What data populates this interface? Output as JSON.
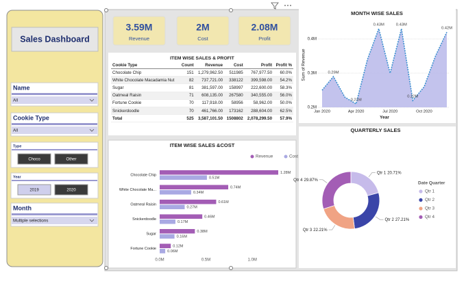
{
  "sidebar": {
    "title": "Sales Dashboard",
    "slicers": [
      {
        "title": "Name",
        "value": "All"
      },
      {
        "title": "Cookie Type",
        "value": "All"
      },
      {
        "title": "Type",
        "options": [
          "Choco",
          "Other"
        ],
        "selected": [
          true,
          true
        ]
      },
      {
        "title": "Year",
        "options": [
          "2019",
          "2020"
        ],
        "selected": [
          false,
          true
        ]
      },
      {
        "title": "Month",
        "value": "Multiple selections"
      }
    ]
  },
  "kpis": [
    {
      "value": "3.59M",
      "label": "Revenue"
    },
    {
      "value": "2M",
      "label": "Cost"
    },
    {
      "value": "2.08M",
      "label": "Profit"
    }
  ],
  "table": {
    "title": "ITEM WISE SALES & PROFIT",
    "columns": [
      "Cookie Type",
      "Count",
      "Revenue",
      "Cost",
      "Profit",
      "Profit %"
    ],
    "rows": [
      [
        "Chocolate Chip",
        151,
        "1,279,962.50",
        511985,
        "767,977.50",
        "60.0%"
      ],
      [
        "White Chocolate Macadamia Nut",
        82,
        "737,721.00",
        338122,
        "399,598.00",
        "54.2%"
      ],
      [
        "Sugar",
        81,
        "381,597.00",
        158997,
        "222,600.00",
        "58.3%"
      ],
      [
        "Oatmeal Raisin",
        71,
        "608,135.00",
        267580,
        "340,555.00",
        "56.0%"
      ],
      [
        "Fortune Cookie",
        70,
        "117,918.00",
        58956,
        "58,962.00",
        "50.0%"
      ],
      [
        "Snickerdoodle",
        70,
        "461,766.00",
        173162,
        "288,604.00",
        "62.5%"
      ]
    ],
    "total": [
      "Total",
      525,
      "3,587,101.50",
      1508802,
      "2,078,299.50",
      "57.9%"
    ]
  },
  "chart_data": [
    {
      "type": "line",
      "title": "MONTH WISE SALES",
      "x_label": "Year",
      "y_label": "Sum of Revenue",
      "x": [
        "2020-01",
        "2020-02",
        "2020-03",
        "2020-04",
        "2020-05",
        "2020-06",
        "2020-07",
        "2020-08",
        "2020-09",
        "2020-10",
        "2020-11",
        "2020-12"
      ],
      "values": [
        0.25,
        0.29,
        0.23,
        0.21,
        0.34,
        0.43,
        0.3,
        0.43,
        0.22,
        0.26,
        0.35,
        0.42
      ],
      "value_labels": [
        null,
        "0.29M",
        null,
        "0.21M",
        null,
        "0.43M",
        null,
        "0.43M",
        "0.22M",
        null,
        null,
        "0.42M"
      ],
      "color": "#3a8fd0",
      "fill": "#b9b9ea",
      "xlim": [
        "2020-01",
        "2020-12"
      ],
      "xticks": [
        {
          "value": "2020-01",
          "label": "Jan 2020"
        },
        {
          "value": "2020-04",
          "label": "Apr 2020"
        },
        {
          "value": "2020-07",
          "label": "Jul 2020"
        },
        {
          "value": "2020-10",
          "label": "Oct 2020"
        }
      ],
      "ylim": [
        0.2,
        0.45
      ],
      "yticks": [
        {
          "value": 0.2,
          "label": "0.2M"
        },
        {
          "value": 0.3,
          "label": "0.3M"
        },
        {
          "value": 0.4,
          "label": "0.4M"
        }
      ],
      "grid": true
    },
    {
      "type": "bar",
      "orientation": "horizontal",
      "title": "ITEM WISE SALES &COST",
      "categories": [
        "Chocolate Chip",
        "White Chocolate Ma...",
        "Oatmeal Raisin",
        "Snickerdoodle",
        "Sugar",
        "Fortune Cookie"
      ],
      "series": [
        {
          "name": "Revenue",
          "color": "#a35db5",
          "values": [
            1.28,
            0.74,
            0.61,
            0.46,
            0.38,
            0.12
          ],
          "value_labels": [
            "1.28M",
            "0.74M",
            "0.61M",
            "0.46M",
            "0.38M",
            "0.12M"
          ]
        },
        {
          "name": "Cost",
          "color": "#a9a9e3",
          "values": [
            0.51,
            0.34,
            0.27,
            0.17,
            0.16,
            0.06
          ],
          "value_labels": [
            "0.51M",
            "0.34M",
            "0.27M",
            "0.17M",
            "0.16M",
            "0.06M"
          ]
        }
      ],
      "xlim": [
        0,
        1.45
      ],
      "xticks": [
        {
          "value": 0,
          "label": "0.0M"
        },
        {
          "value": 0.5,
          "label": "0.5M"
        },
        {
          "value": 1,
          "label": "1.0M"
        }
      ],
      "legend": "top-right"
    },
    {
      "type": "pie",
      "donut": true,
      "title": "QUARTERLY SALES",
      "legend_title": "Date Quarter",
      "categories": [
        "Qtr 1",
        "Qtr 2",
        "Qtr 3",
        "Qtr 4"
      ],
      "values": [
        20.71,
        27.21,
        22.21,
        29.87
      ],
      "value_labels": [
        "20.71%",
        "27.21%",
        "22.21%",
        "29.87%"
      ],
      "colors": [
        "#c6bbea",
        "#3a45a8",
        "#f0a384",
        "#a35db5"
      ],
      "legend": "right"
    }
  ]
}
